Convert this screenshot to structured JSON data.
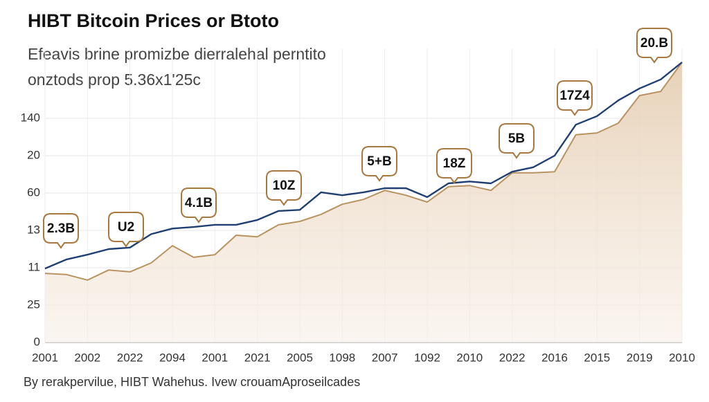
{
  "chart_data": {
    "type": "line",
    "title": "HIBT Bitcoin Prices or Btoto",
    "subtitle": [
      "Efeavis brine promizbe dierralehal perntito",
      "onztods prop 5.36x1'25c"
    ],
    "footer": "By rerakpervilue, HIBT Wahehus. Ivew crouamAproseilcades",
    "x": [
      0,
      0.5,
      1,
      1.5,
      2,
      2.5,
      3,
      3.5,
      4,
      4.5,
      5,
      5.5,
      6,
      6.5,
      7,
      7.5,
      8,
      8.5,
      9,
      9.5,
      10,
      10.5,
      11,
      11.5,
      12,
      12.5,
      13,
      13.5,
      14,
      14.5,
      15
    ],
    "xlim": [
      0,
      15
    ],
    "xticks": [
      {
        "value": 0,
        "label": "2001"
      },
      {
        "value": 1,
        "label": "2002"
      },
      {
        "value": 2,
        "label": "2022"
      },
      {
        "value": 3,
        "label": "2094"
      },
      {
        "value": 4,
        "label": "2001"
      },
      {
        "value": 5,
        "label": "2021"
      },
      {
        "value": 6,
        "label": "2005"
      },
      {
        "value": 7,
        "label": "1098"
      },
      {
        "value": 8,
        "label": "2007"
      },
      {
        "value": 9,
        "label": "1092"
      },
      {
        "value": 10,
        "label": "2010"
      },
      {
        "value": 11,
        "label": "2022"
      },
      {
        "value": 12,
        "label": "2016"
      },
      {
        "value": 13,
        "label": "2015"
      },
      {
        "value": 14,
        "label": "2019"
      },
      {
        "value": 15,
        "label": "2010"
      }
    ],
    "ylim": [
      0,
      7.5
    ],
    "yticks": [
      {
        "value": 0,
        "label": "0"
      },
      {
        "value": 1,
        "label": "25"
      },
      {
        "value": 2,
        "label": "11"
      },
      {
        "value": 3,
        "label": "13"
      },
      {
        "value": 4,
        "label": "60"
      },
      {
        "value": 5,
        "label": "20"
      },
      {
        "value": 6,
        "label": "140"
      }
    ],
    "grid": true,
    "series": [
      {
        "color": "#1f3f73",
        "values": [
          1.98,
          2.22,
          2.35,
          2.5,
          2.54,
          2.9,
          3.05,
          3.09,
          3.15,
          3.15,
          3.28,
          3.52,
          3.55,
          4.02,
          3.94,
          4.02,
          4.13,
          4.13,
          3.89,
          4.26,
          4.31,
          4.26,
          4.57,
          4.69,
          5.0,
          5.83,
          6.06,
          6.48,
          6.8,
          7.04,
          7.5
        ]
      },
      {
        "color": "#b8925f",
        "values": [
          1.85,
          1.82,
          1.67,
          1.94,
          1.89,
          2.13,
          2.59,
          2.28,
          2.35,
          2.87,
          2.83,
          3.15,
          3.24,
          3.43,
          3.7,
          3.83,
          4.07,
          3.94,
          3.76,
          4.17,
          4.2,
          4.07,
          4.54,
          4.54,
          4.57,
          5.56,
          5.61,
          5.87,
          6.61,
          6.72,
          7.5
        ],
        "area": true
      }
    ],
    "annotations": [
      "2.3B",
      "U2",
      "4.1B",
      "10Z",
      "5+B",
      "18Z",
      "5B",
      "17Z4",
      "20.B"
    ]
  }
}
